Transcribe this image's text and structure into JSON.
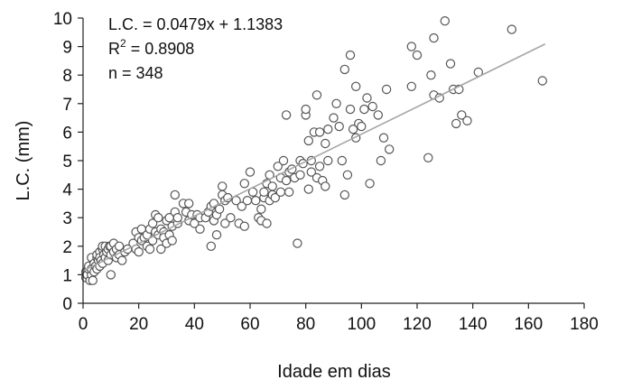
{
  "chart_data": {
    "type": "scatter",
    "xlabel": "Idade em dias",
    "ylabel": "L.C. (mm)",
    "xlim": [
      0,
      180
    ],
    "ylim": [
      0,
      10
    ],
    "x_ticks": [
      "0",
      "20",
      "40",
      "60",
      "80",
      "100",
      "120",
      "140",
      "160",
      "180"
    ],
    "y_ticks": [
      "0",
      "1",
      "2",
      "3",
      "4",
      "5",
      "6",
      "7",
      "8",
      "9",
      "10"
    ],
    "grid": false,
    "annotations": {
      "equation": "L.C. = 0.0479x + 1.1383",
      "r2_prefix": "R",
      "r2_sup": "2",
      "r2_value": " = 0.8908",
      "n": "n = 348"
    },
    "trendline": {
      "slope": 0.0479,
      "intercept": 1.1383,
      "x_start": 0,
      "x_end": 166
    },
    "colors": {
      "marker_stroke": "#555555",
      "trendline": "#a6a6a6",
      "axis": "#222222"
    },
    "points": [
      [
        1,
        0.9
      ],
      [
        1,
        1.1
      ],
      [
        1.5,
        1.0
      ],
      [
        2,
        1.2
      ],
      [
        2,
        1.3
      ],
      [
        2.5,
        0.8
      ],
      [
        3,
        1.0
      ],
      [
        3,
        1.2
      ],
      [
        3,
        1.6
      ],
      [
        3.5,
        0.8
      ],
      [
        4,
        1.1
      ],
      [
        4,
        1.4
      ],
      [
        4.5,
        1.3
      ],
      [
        5,
        1.2
      ],
      [
        5,
        1.6
      ],
      [
        5,
        1.7
      ],
      [
        5.5,
        1.5
      ],
      [
        6,
        1.3
      ],
      [
        6,
        1.8
      ],
      [
        6,
        1.6
      ],
      [
        6.5,
        1.5
      ],
      [
        7,
        1.4
      ],
      [
        7,
        1.9
      ],
      [
        7,
        2.0
      ],
      [
        7.5,
        1.7
      ],
      [
        8,
        1.6
      ],
      [
        8,
        2.0
      ],
      [
        8.5,
        1.8
      ],
      [
        9,
        1.5
      ],
      [
        9,
        1.9
      ],
      [
        9.5,
        2.0
      ],
      [
        10,
        1.0
      ],
      [
        10,
        1.7
      ],
      [
        10,
        2.0
      ],
      [
        11,
        1.8
      ],
      [
        11,
        2.1
      ],
      [
        12,
        1.9
      ],
      [
        12,
        1.6
      ],
      [
        13,
        1.7
      ],
      [
        13,
        2.0
      ],
      [
        14,
        1.5
      ],
      [
        15,
        1.8
      ],
      [
        16,
        1.9
      ],
      [
        18,
        2.1
      ],
      [
        19,
        2.5
      ],
      [
        19,
        1.9
      ],
      [
        20,
        2.3
      ],
      [
        20,
        1.8
      ],
      [
        21,
        2.2
      ],
      [
        21,
        2.6
      ],
      [
        22,
        2.3
      ],
      [
        23,
        2.0
      ],
      [
        23,
        2.4
      ],
      [
        24,
        2.6
      ],
      [
        24,
        1.9
      ],
      [
        25,
        2.2
      ],
      [
        25,
        2.8
      ],
      [
        26,
        2.5
      ],
      [
        26,
        3.1
      ],
      [
        27,
        2.4
      ],
      [
        27,
        3.0
      ],
      [
        28,
        1.9
      ],
      [
        28,
        2.6
      ],
      [
        29,
        2.5
      ],
      [
        29,
        2.3
      ],
      [
        30,
        2.1
      ],
      [
        30,
        2.9
      ],
      [
        31,
        2.4
      ],
      [
        31,
        3.0
      ],
      [
        32,
        2.7
      ],
      [
        32,
        2.2
      ],
      [
        33,
        3.2
      ],
      [
        33,
        3.8
      ],
      [
        34,
        2.8
      ],
      [
        34,
        3.0
      ],
      [
        36,
        3.5
      ],
      [
        37,
        3.2
      ],
      [
        38,
        3.5
      ],
      [
        38,
        2.9
      ],
      [
        39,
        3.1
      ],
      [
        40,
        2.8
      ],
      [
        41,
        3.1
      ],
      [
        42,
        3.0
      ],
      [
        42,
        2.6
      ],
      [
        44,
        3.0
      ],
      [
        45,
        3.2
      ],
      [
        46,
        2.0
      ],
      [
        46,
        3.4
      ],
      [
        47,
        3.5
      ],
      [
        47,
        2.9
      ],
      [
        48,
        3.1
      ],
      [
        48,
        2.4
      ],
      [
        49,
        3.3
      ],
      [
        50,
        3.8
      ],
      [
        50,
        4.1
      ],
      [
        51,
        3.6
      ],
      [
        51,
        2.8
      ],
      [
        52,
        3.7
      ],
      [
        53,
        3.0
      ],
      [
        55,
        3.6
      ],
      [
        56,
        2.8
      ],
      [
        57,
        3.4
      ],
      [
        58,
        2.7
      ],
      [
        58,
        4.2
      ],
      [
        59,
        3.6
      ],
      [
        60,
        4.6
      ],
      [
        61,
        3.9
      ],
      [
        62,
        3.6
      ],
      [
        63,
        3.0
      ],
      [
        64,
        3.3
      ],
      [
        64,
        2.9
      ],
      [
        65,
        3.7
      ],
      [
        65,
        3.9
      ],
      [
        66,
        4.2
      ],
      [
        66,
        2.8
      ],
      [
        67,
        3.6
      ],
      [
        67,
        4.5
      ],
      [
        68,
        3.8
      ],
      [
        68,
        4.1
      ],
      [
        69,
        3.7
      ],
      [
        70,
        4.8
      ],
      [
        71,
        3.9
      ],
      [
        71,
        4.4
      ],
      [
        72,
        5.0
      ],
      [
        73,
        4.3
      ],
      [
        73,
        6.6
      ],
      [
        74,
        3.9
      ],
      [
        74,
        4.6
      ],
      [
        75,
        4.7
      ],
      [
        76,
        4.4
      ],
      [
        77,
        2.1
      ],
      [
        78,
        4.5
      ],
      [
        78,
        5.0
      ],
      [
        79,
        4.9
      ],
      [
        80,
        6.6
      ],
      [
        80,
        6.8
      ],
      [
        81,
        5.7
      ],
      [
        81,
        4.0
      ],
      [
        82,
        4.6
      ],
      [
        82,
        5.0
      ],
      [
        83,
        6.0
      ],
      [
        84,
        4.4
      ],
      [
        84,
        7.3
      ],
      [
        85,
        4.8
      ],
      [
        85,
        6.0
      ],
      [
        86,
        4.3
      ],
      [
        87,
        5.6
      ],
      [
        87,
        4.1
      ],
      [
        88,
        6.1
      ],
      [
        88,
        5.0
      ],
      [
        90,
        6.5
      ],
      [
        91,
        7.0
      ],
      [
        92,
        6.2
      ],
      [
        93,
        5.0
      ],
      [
        94,
        3.8
      ],
      [
        94,
        8.2
      ],
      [
        95,
        4.5
      ],
      [
        96,
        6.8
      ],
      [
        96,
        8.7
      ],
      [
        97,
        6.1
      ],
      [
        98,
        5.8
      ],
      [
        98,
        7.6
      ],
      [
        99,
        6.3
      ],
      [
        100,
        6.2
      ],
      [
        101,
        6.8
      ],
      [
        102,
        7.2
      ],
      [
        103,
        4.2
      ],
      [
        104,
        6.9
      ],
      [
        106,
        6.6
      ],
      [
        107,
        5.0
      ],
      [
        108,
        5.8
      ],
      [
        109,
        7.5
      ],
      [
        110,
        5.4
      ],
      [
        118,
        7.6
      ],
      [
        118,
        9.0
      ],
      [
        120,
        8.7
      ],
      [
        124,
        5.1
      ],
      [
        125,
        8.0
      ],
      [
        126,
        7.3
      ],
      [
        126,
        9.3
      ],
      [
        128,
        7.2
      ],
      [
        130,
        9.9
      ],
      [
        132,
        8.4
      ],
      [
        133,
        7.5
      ],
      [
        134,
        6.3
      ],
      [
        135,
        7.5
      ],
      [
        136,
        6.6
      ],
      [
        138,
        6.4
      ],
      [
        142,
        8.1
      ],
      [
        154,
        9.6
      ],
      [
        165,
        7.8
      ]
    ]
  }
}
